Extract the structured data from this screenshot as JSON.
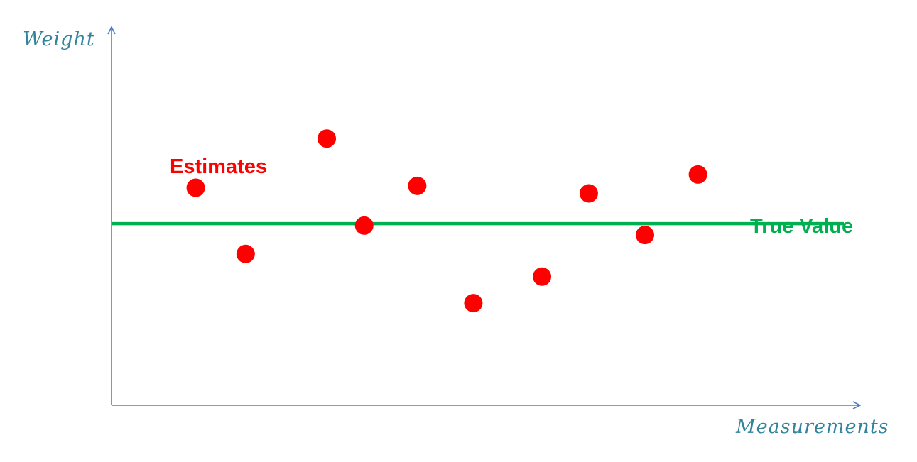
{
  "chart_data": {
    "type": "scatter",
    "title": "",
    "xlabel": "Measurements",
    "ylabel": "Weight",
    "grid": false,
    "xlim": [
      0,
      12
    ],
    "ylim": [
      0,
      10
    ],
    "series": [
      {
        "name": "Estimates",
        "x": [
          1.35,
          2.15,
          3.45,
          4.05,
          4.9,
          5.8,
          6.9,
          7.65,
          8.55,
          9.4
        ],
        "y": [
          5.75,
          4.0,
          7.05,
          4.75,
          5.8,
          2.7,
          3.4,
          5.6,
          4.5,
          6.1
        ],
        "color": "#ff0000"
      }
    ],
    "reference_line": {
      "name": "True Value",
      "y": 4.8,
      "color": "#00b050"
    },
    "axis_color": "#4f81bd",
    "axis_label_color": "#31849b"
  }
}
